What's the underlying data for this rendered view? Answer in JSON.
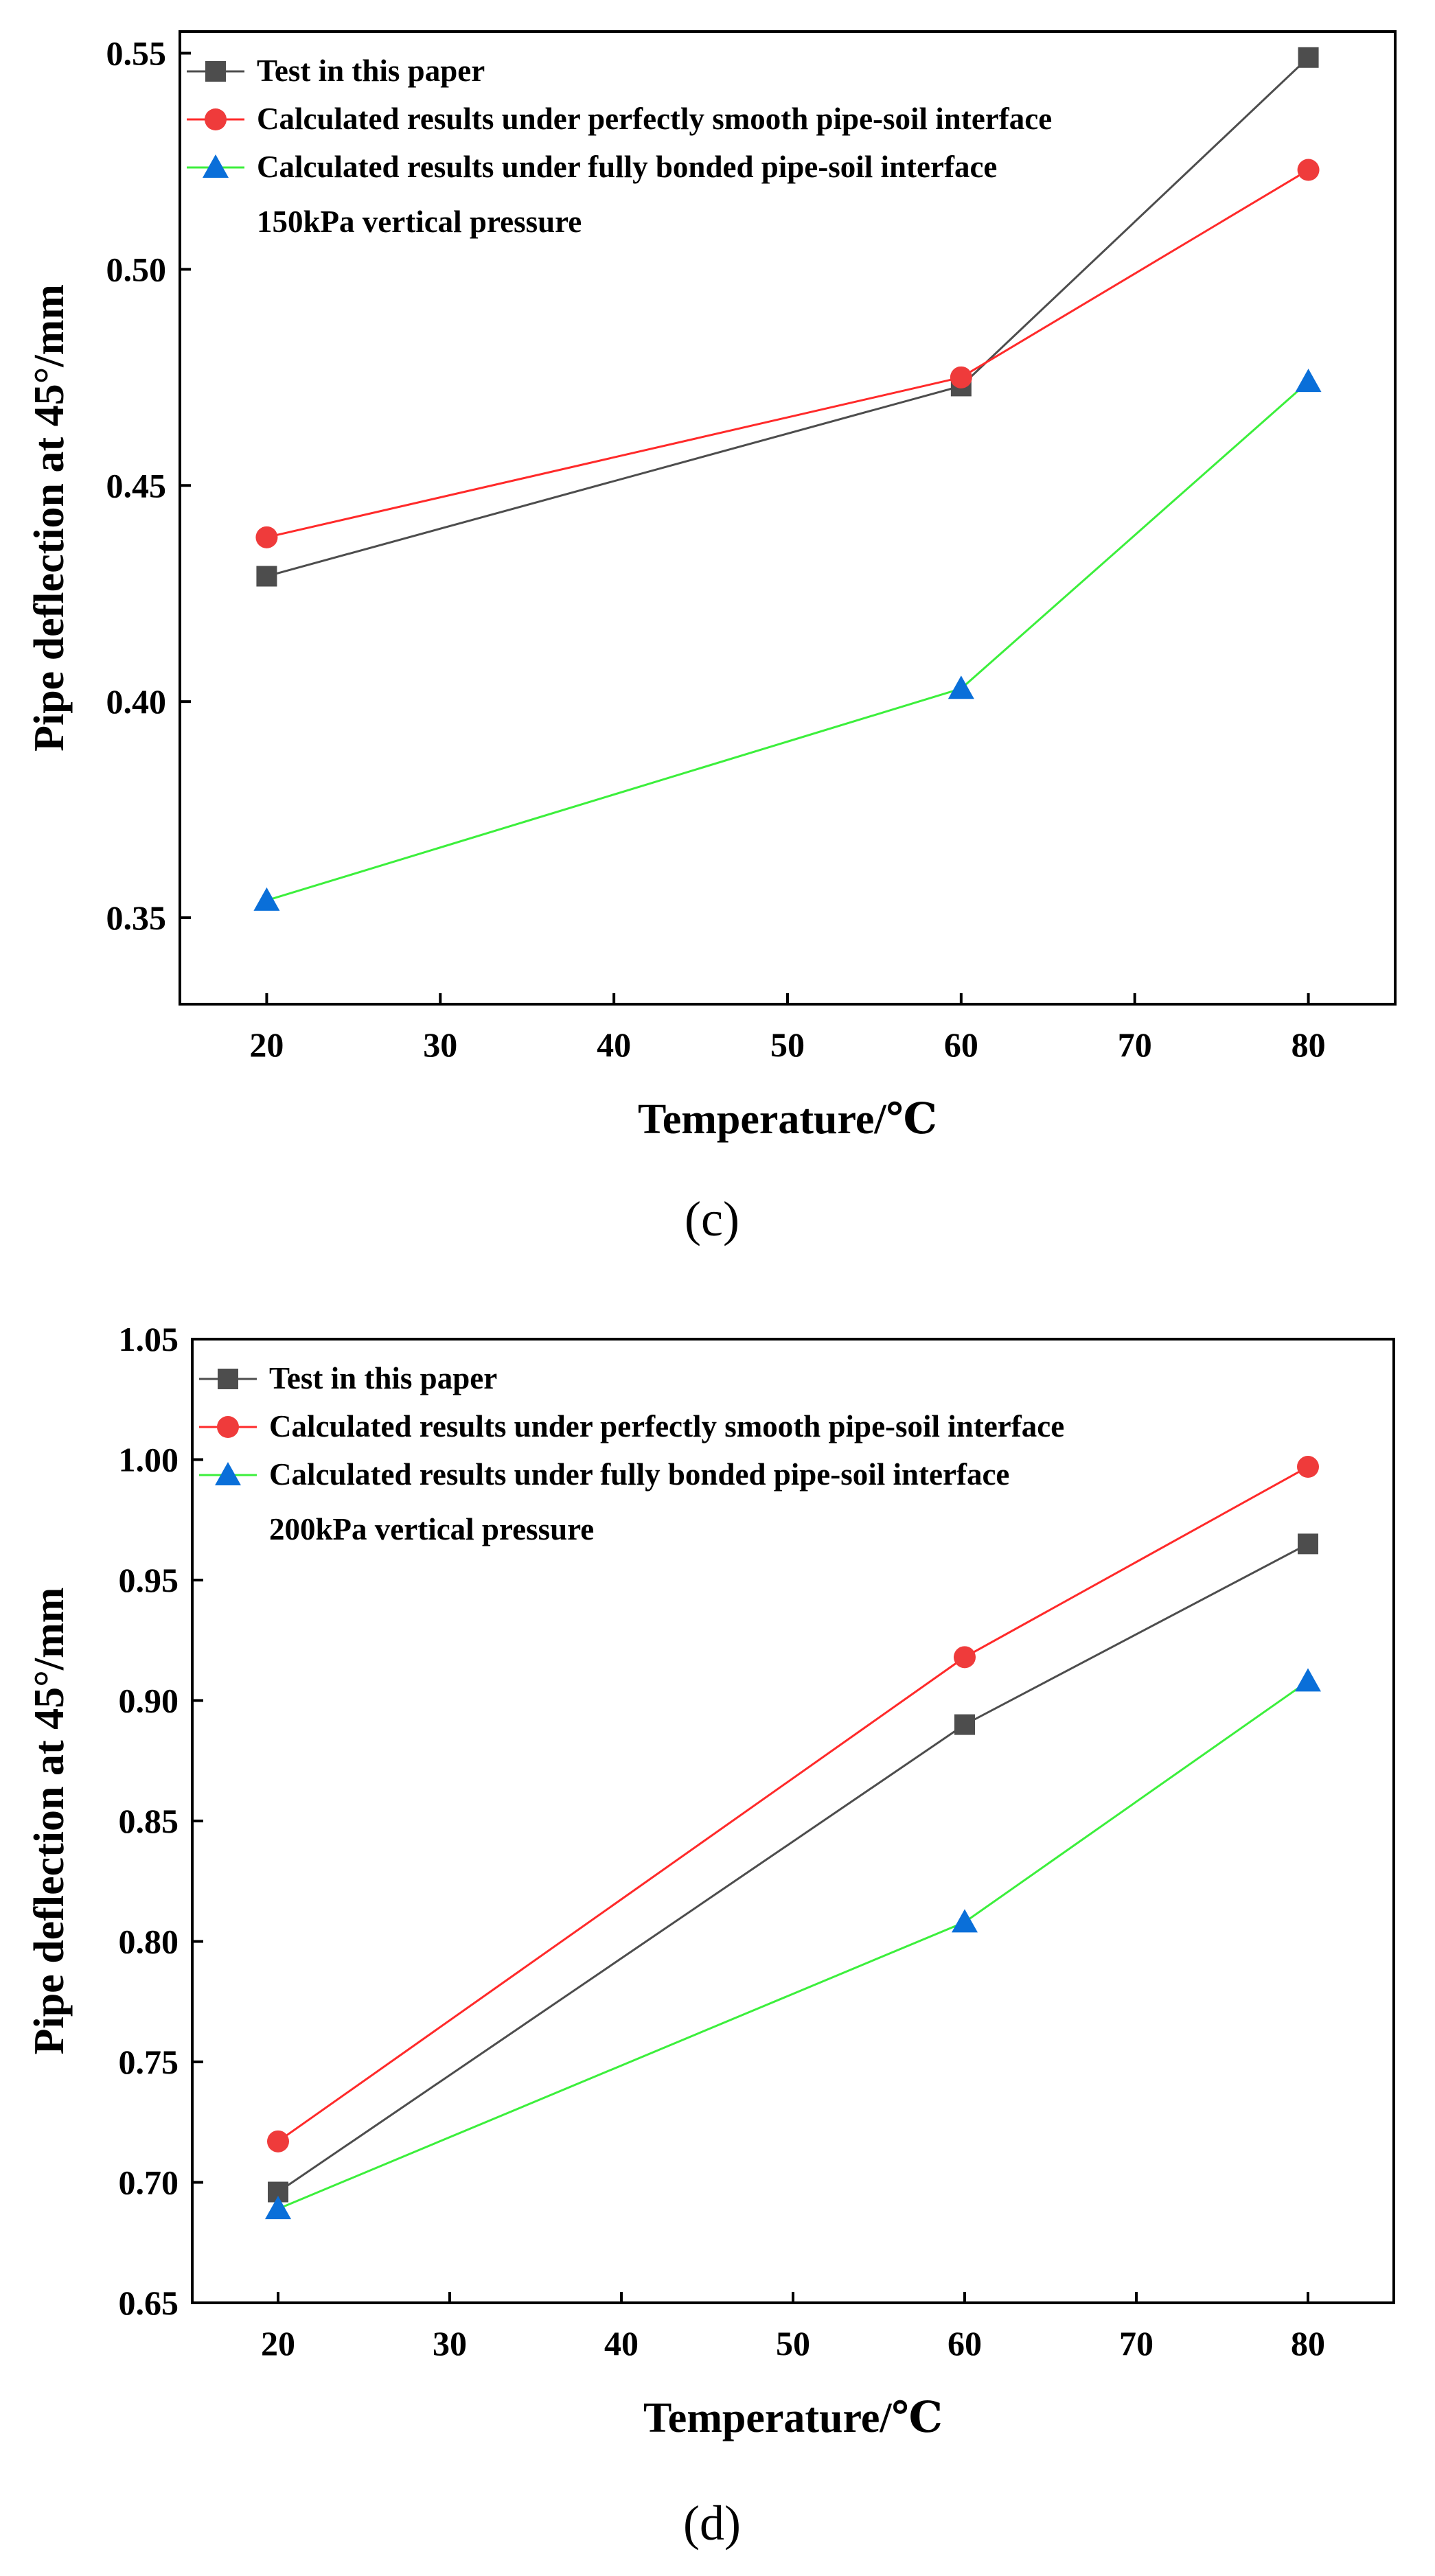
{
  "colors": {
    "test": "#4d4d4d",
    "smooth": "#ef3b3b",
    "bonded": "#0a6fd9",
    "smooth_line": "#ff2a2a",
    "bonded_line": "#3cef3c",
    "axis": "#000000"
  },
  "chart_data": [
    {
      "type": "line",
      "caption": "(c)",
      "xlabel": "Temperature/℃",
      "ylabel": "Pipe deflection at 45°/mm",
      "xlim": [
        15,
        85
      ],
      "ylim": [
        0.33,
        0.555
      ],
      "xticks": [
        20,
        30,
        40,
        50,
        60,
        70,
        80
      ],
      "yticks": [
        "0.35",
        "0.40",
        "0.45",
        "0.50",
        "0.55"
      ],
      "x": [
        20,
        60,
        80
      ],
      "series": [
        {
          "name": "Test in this paper",
          "marker": "square",
          "values": [
            0.429,
            0.473,
            0.549
          ]
        },
        {
          "name": "Calculated results under perfectly smooth pipe-soil interface",
          "marker": "circle",
          "values": [
            0.438,
            0.475,
            0.523
          ]
        },
        {
          "name": "Calculated results under fully bonded pipe-soil interface",
          "marker": "triangle",
          "values": [
            0.354,
            0.403,
            0.474
          ]
        }
      ],
      "legend_note": "150kPa vertical pressure",
      "legend_position": "top-left"
    },
    {
      "type": "line",
      "caption": "(d)",
      "xlabel": "Temperature/℃",
      "ylabel": "Pipe deflection at 45°/mm",
      "xlim": [
        15,
        85
      ],
      "ylim": [
        0.65,
        1.05
      ],
      "xticks": [
        20,
        30,
        40,
        50,
        60,
        70,
        80
      ],
      "yticks": [
        "0.65",
        "0.70",
        "0.75",
        "0.80",
        "0.85",
        "0.90",
        "0.95",
        "1.00",
        "1.05"
      ],
      "x": [
        20,
        60,
        80
      ],
      "series": [
        {
          "name": "Test in this paper",
          "marker": "square",
          "values": [
            0.696,
            0.89,
            0.965
          ]
        },
        {
          "name": "Calculated results under perfectly smooth pipe-soil interface",
          "marker": "circle",
          "values": [
            0.717,
            0.918,
            0.997
          ]
        },
        {
          "name": "Calculated results under fully bonded pipe-soil interface",
          "marker": "triangle",
          "values": [
            0.689,
            0.808,
            0.908
          ]
        }
      ],
      "legend_note": "200kPa vertical pressure",
      "legend_position": "top-left"
    }
  ]
}
